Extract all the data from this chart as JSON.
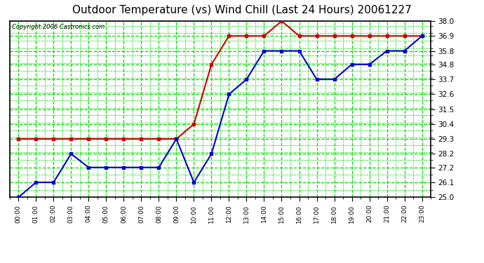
{
  "title": "Outdoor Temperature (vs) Wind Chill (Last 24 Hours) 20061227",
  "copyright": "Copyright 2006 Castronics.com",
  "hours": [
    "00:00",
    "01:00",
    "02:00",
    "03:00",
    "04:00",
    "05:00",
    "06:00",
    "07:00",
    "08:00",
    "09:00",
    "10:00",
    "11:00",
    "12:00",
    "13:00",
    "14:00",
    "15:00",
    "16:00",
    "17:00",
    "18:00",
    "19:00",
    "20:00",
    "21:00",
    "22:00",
    "23:00"
  ],
  "temp": [
    25.0,
    26.1,
    26.1,
    28.2,
    27.2,
    27.2,
    27.2,
    27.2,
    27.2,
    29.3,
    26.1,
    28.2,
    32.6,
    33.7,
    35.8,
    35.8,
    35.8,
    33.7,
    33.7,
    34.8,
    34.8,
    35.8,
    35.8,
    36.9
  ],
  "windchill": [
    29.3,
    29.3,
    29.3,
    29.3,
    29.3,
    29.3,
    29.3,
    29.3,
    29.3,
    29.3,
    30.4,
    34.8,
    36.9,
    36.9,
    36.9,
    38.0,
    36.9,
    36.9,
    36.9,
    36.9,
    36.9,
    36.9,
    36.9,
    36.9
  ],
  "ylim": [
    25.0,
    38.0
  ],
  "yticks": [
    25.0,
    26.1,
    27.2,
    28.2,
    29.3,
    30.4,
    31.5,
    32.6,
    33.7,
    34.8,
    35.8,
    36.9,
    38.0
  ],
  "temp_color": "#0000cc",
  "windchill_color": "#cc0000",
  "bg_color": "#ffffff",
  "plot_bg_color": "#ffffff",
  "grid_color": "#00dd00",
  "title_color": "#000000",
  "marker": "s",
  "marker_size": 3,
  "line_width": 1.5
}
